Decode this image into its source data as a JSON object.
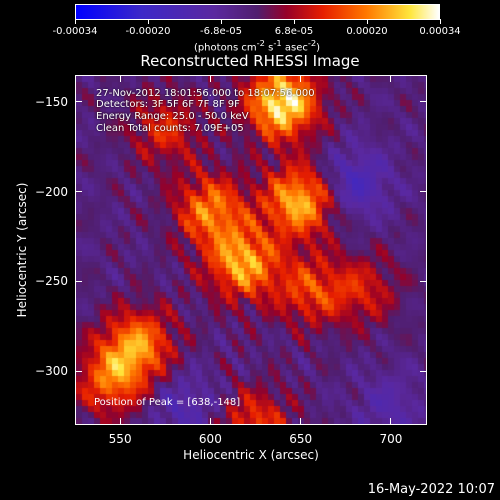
{
  "chart_data": {
    "type": "heatmap",
    "title": "Reconstructed RHESSI Image",
    "xlabel": "Heliocentric X (arcsec)",
    "ylabel": "Heliocentric Y (arcsec)",
    "xlim": [
      525,
      720
    ],
    "ylim": [
      -330,
      -135
    ],
    "x_ticks": [
      550,
      600,
      650,
      700
    ],
    "y_ticks": [
      -150,
      -200,
      -250,
      -300
    ],
    "colorbar": {
      "ticks": [
        "-0.00034",
        "-0.00020",
        "-6.8e-05",
        "6.8e-05",
        "0.00020",
        "0.00034"
      ],
      "range": [
        -0.00034,
        0.00034
      ],
      "unit_prefix": "(photons cm",
      "unit_sup1": "-2",
      "unit_mid1": " s",
      "unit_sup2": "-1",
      "unit_mid2": " asec",
      "unit_sup3": "-2",
      "unit_suffix": ")"
    },
    "annotations": [
      "27-Nov-2012 18:01:56.000 to 18:07:56.000",
      "Detectors: 3F 5F 6F 7F 8F 9F",
      "Energy Range: 25.0 - 50.0 keV",
      "Clean     Total counts: 7.09E+05"
    ],
    "peak_text": "Position of Peak = [638,-148]",
    "peak": [
      638,
      -148
    ],
    "hot_regions": [
      {
        "x": 640,
        "y": -150,
        "value": 0.00034
      },
      {
        "x": 650,
        "y": -205,
        "value": 0.00028
      },
      {
        "x": 618,
        "y": -240,
        "value": 0.00026
      },
      {
        "x": 600,
        "y": -210,
        "value": 0.00022
      },
      {
        "x": 560,
        "y": -285,
        "value": 0.00022
      },
      {
        "x": 545,
        "y": -305,
        "value": 0.0002
      },
      {
        "x": 655,
        "y": -255,
        "value": 0.00016
      },
      {
        "x": 625,
        "y": -330,
        "value": 0.00016
      },
      {
        "x": 575,
        "y": -165,
        "value": 0.00014
      },
      {
        "x": 685,
        "y": -255,
        "value": 0.00012
      }
    ],
    "cold_regions": [
      {
        "x": 680,
        "y": -195,
        "value": -0.00014
      },
      {
        "x": 585,
        "y": -320,
        "value": -0.0001
      },
      {
        "x": 700,
        "y": -320,
        "value": -8e-05
      }
    ]
  },
  "footer_date": "16-May-2022 10:07"
}
